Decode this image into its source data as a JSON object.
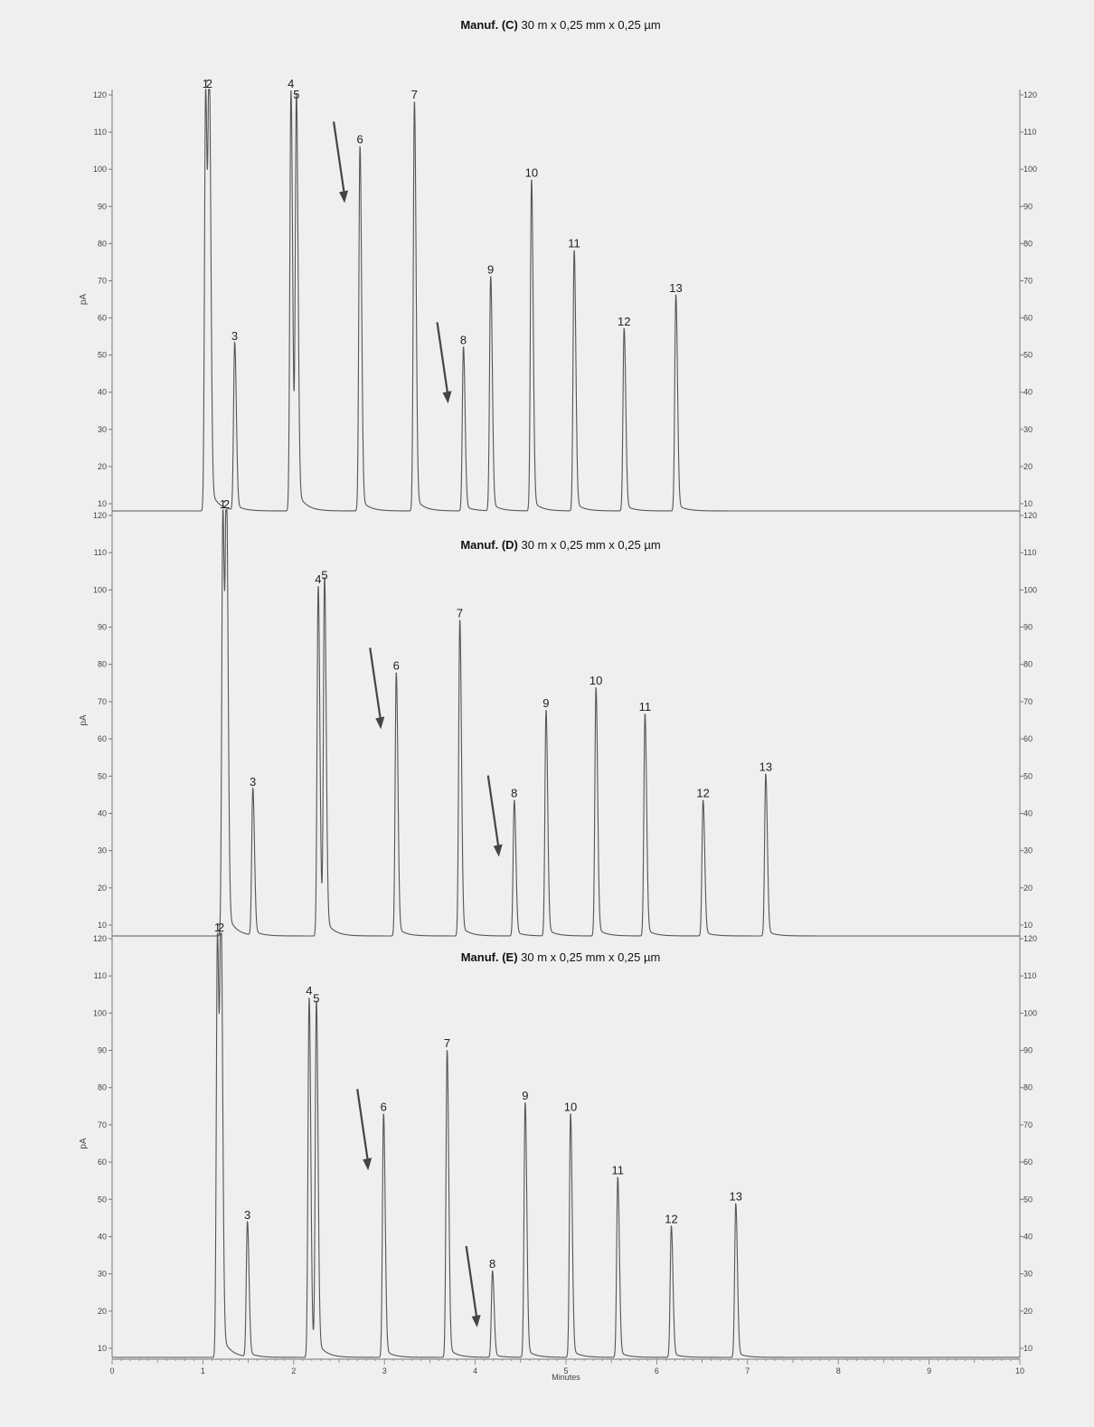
{
  "chart_data": [
    {
      "type": "line",
      "title_bold": "Manuf. (C)",
      "title_rest": " 30 m x 0,25 mm x 0,25 µm",
      "ylabel": "pA",
      "xlabel": "",
      "xlim": [
        0,
        10
      ],
      "ylim": [
        6,
        121
      ],
      "y_ticks": [
        10,
        20,
        30,
        40,
        50,
        60,
        70,
        80,
        90,
        100,
        110,
        120
      ],
      "y_tick_labels_left": [
        "10",
        "20",
        "30",
        "40",
        "50",
        "60",
        "70",
        "80",
        "90",
        "100",
        "110",
        "120"
      ],
      "y_tick_labels_right": [
        "10",
        "20",
        "30",
        "40",
        "50",
        "60",
        "70",
        "80",
        "90",
        "100",
        "110",
        "120"
      ],
      "baseline": 8,
      "peaks": [
        {
          "label": "1",
          "rt": 1.03,
          "height": 121
        },
        {
          "label": "2",
          "rt": 1.07,
          "height": 121
        },
        {
          "label": "3",
          "rt": 1.35,
          "height": 53
        },
        {
          "label": "4",
          "rt": 1.97,
          "height": 121
        },
        {
          "label": "5",
          "rt": 2.03,
          "height": 118
        },
        {
          "label": "6",
          "rt": 2.73,
          "height": 106
        },
        {
          "label": "7",
          "rt": 3.33,
          "height": 118
        },
        {
          "label": "8",
          "rt": 3.87,
          "height": 52
        },
        {
          "label": "9",
          "rt": 4.17,
          "height": 71
        },
        {
          "label": "10",
          "rt": 4.62,
          "height": 97
        },
        {
          "label": "11",
          "rt": 5.09,
          "height": 78
        },
        {
          "label": "12",
          "rt": 5.64,
          "height": 57
        },
        {
          "label": "13",
          "rt": 6.21,
          "height": 66
        }
      ],
      "arrows_to_peaks": [
        "6",
        "8"
      ]
    },
    {
      "type": "line",
      "title_bold": "Manuf. (D)",
      "title_rest": " 30 m x 0,25 mm x 0,25 µm",
      "ylabel": "pA",
      "xlabel": "",
      "xlim": [
        0,
        10
      ],
      "ylim": [
        6,
        121
      ],
      "y_ticks": [
        10,
        20,
        30,
        40,
        50,
        60,
        70,
        80,
        90,
        100,
        110,
        120
      ],
      "y_tick_labels_left": [
        "10",
        "20",
        "30",
        "40",
        "50",
        "60",
        "70",
        "80",
        "90",
        "100",
        "110",
        "120"
      ],
      "y_tick_labels_right": [
        "10",
        "20",
        "30",
        "40",
        "50",
        "60",
        "70",
        "80",
        "90",
        "100",
        "110",
        "120"
      ],
      "baseline": 8,
      "peaks": [
        {
          "label": "1",
          "rt": 1.22,
          "height": 121
        },
        {
          "label": "2",
          "rt": 1.26,
          "height": 121
        },
        {
          "label": "3",
          "rt": 1.55,
          "height": 47
        },
        {
          "label": "4",
          "rt": 2.27,
          "height": 101
        },
        {
          "label": "5",
          "rt": 2.34,
          "height": 102
        },
        {
          "label": "6",
          "rt": 3.13,
          "height": 78
        },
        {
          "label": "7",
          "rt": 3.83,
          "height": 92
        },
        {
          "label": "8",
          "rt": 4.43,
          "height": 44
        },
        {
          "label": "9",
          "rt": 4.78,
          "height": 68
        },
        {
          "label": "10",
          "rt": 5.33,
          "height": 74
        },
        {
          "label": "11",
          "rt": 5.87,
          "height": 67
        },
        {
          "label": "12",
          "rt": 6.51,
          "height": 44
        },
        {
          "label": "13",
          "rt": 7.2,
          "height": 51
        }
      ],
      "arrows_to_peaks": [
        "6",
        "8"
      ]
    },
    {
      "type": "line",
      "title_bold": "Manuf. (E)",
      "title_rest": " 30 m x 0,25 mm x 0,25 µm",
      "ylabel": "pA",
      "xlabel": "Minutes",
      "xlim": [
        0,
        10
      ],
      "ylim": [
        6,
        121
      ],
      "x_ticks": [
        0,
        1,
        2,
        3,
        4,
        5,
        6,
        7,
        8,
        9,
        10
      ],
      "x_tick_labels": [
        "0",
        "1",
        "2",
        "3",
        "4",
        "5",
        "6",
        "7",
        "8",
        "9",
        "10"
      ],
      "y_ticks": [
        10,
        20,
        30,
        40,
        50,
        60,
        70,
        80,
        90,
        100,
        110,
        120
      ],
      "y_tick_labels_left": [
        "10",
        "20",
        "30",
        "40",
        "50",
        "60",
        "70",
        "80",
        "90",
        "100",
        "110",
        "120"
      ],
      "y_tick_labels_right": [
        "10",
        "20",
        "30",
        "40",
        "50",
        "60",
        "70",
        "80",
        "90",
        "100",
        "110",
        "120"
      ],
      "baseline": 8,
      "peaks": [
        {
          "label": "1",
          "rt": 1.16,
          "height": 121
        },
        {
          "label": "2",
          "rt": 1.2,
          "height": 121
        },
        {
          "label": "3",
          "rt": 1.49,
          "height": 44
        },
        {
          "label": "4",
          "rt": 2.17,
          "height": 104
        },
        {
          "label": "5",
          "rt": 2.25,
          "height": 102
        },
        {
          "label": "6",
          "rt": 2.99,
          "height": 73
        },
        {
          "label": "7",
          "rt": 3.69,
          "height": 90
        },
        {
          "label": "8",
          "rt": 4.19,
          "height": 31
        },
        {
          "label": "9",
          "rt": 4.55,
          "height": 76
        },
        {
          "label": "10",
          "rt": 5.05,
          "height": 73
        },
        {
          "label": "11",
          "rt": 5.57,
          "height": 56
        },
        {
          "label": "12",
          "rt": 6.16,
          "height": 43
        },
        {
          "label": "13",
          "rt": 6.87,
          "height": 49
        }
      ],
      "arrows_to_peaks": [
        "6",
        "8"
      ]
    }
  ]
}
